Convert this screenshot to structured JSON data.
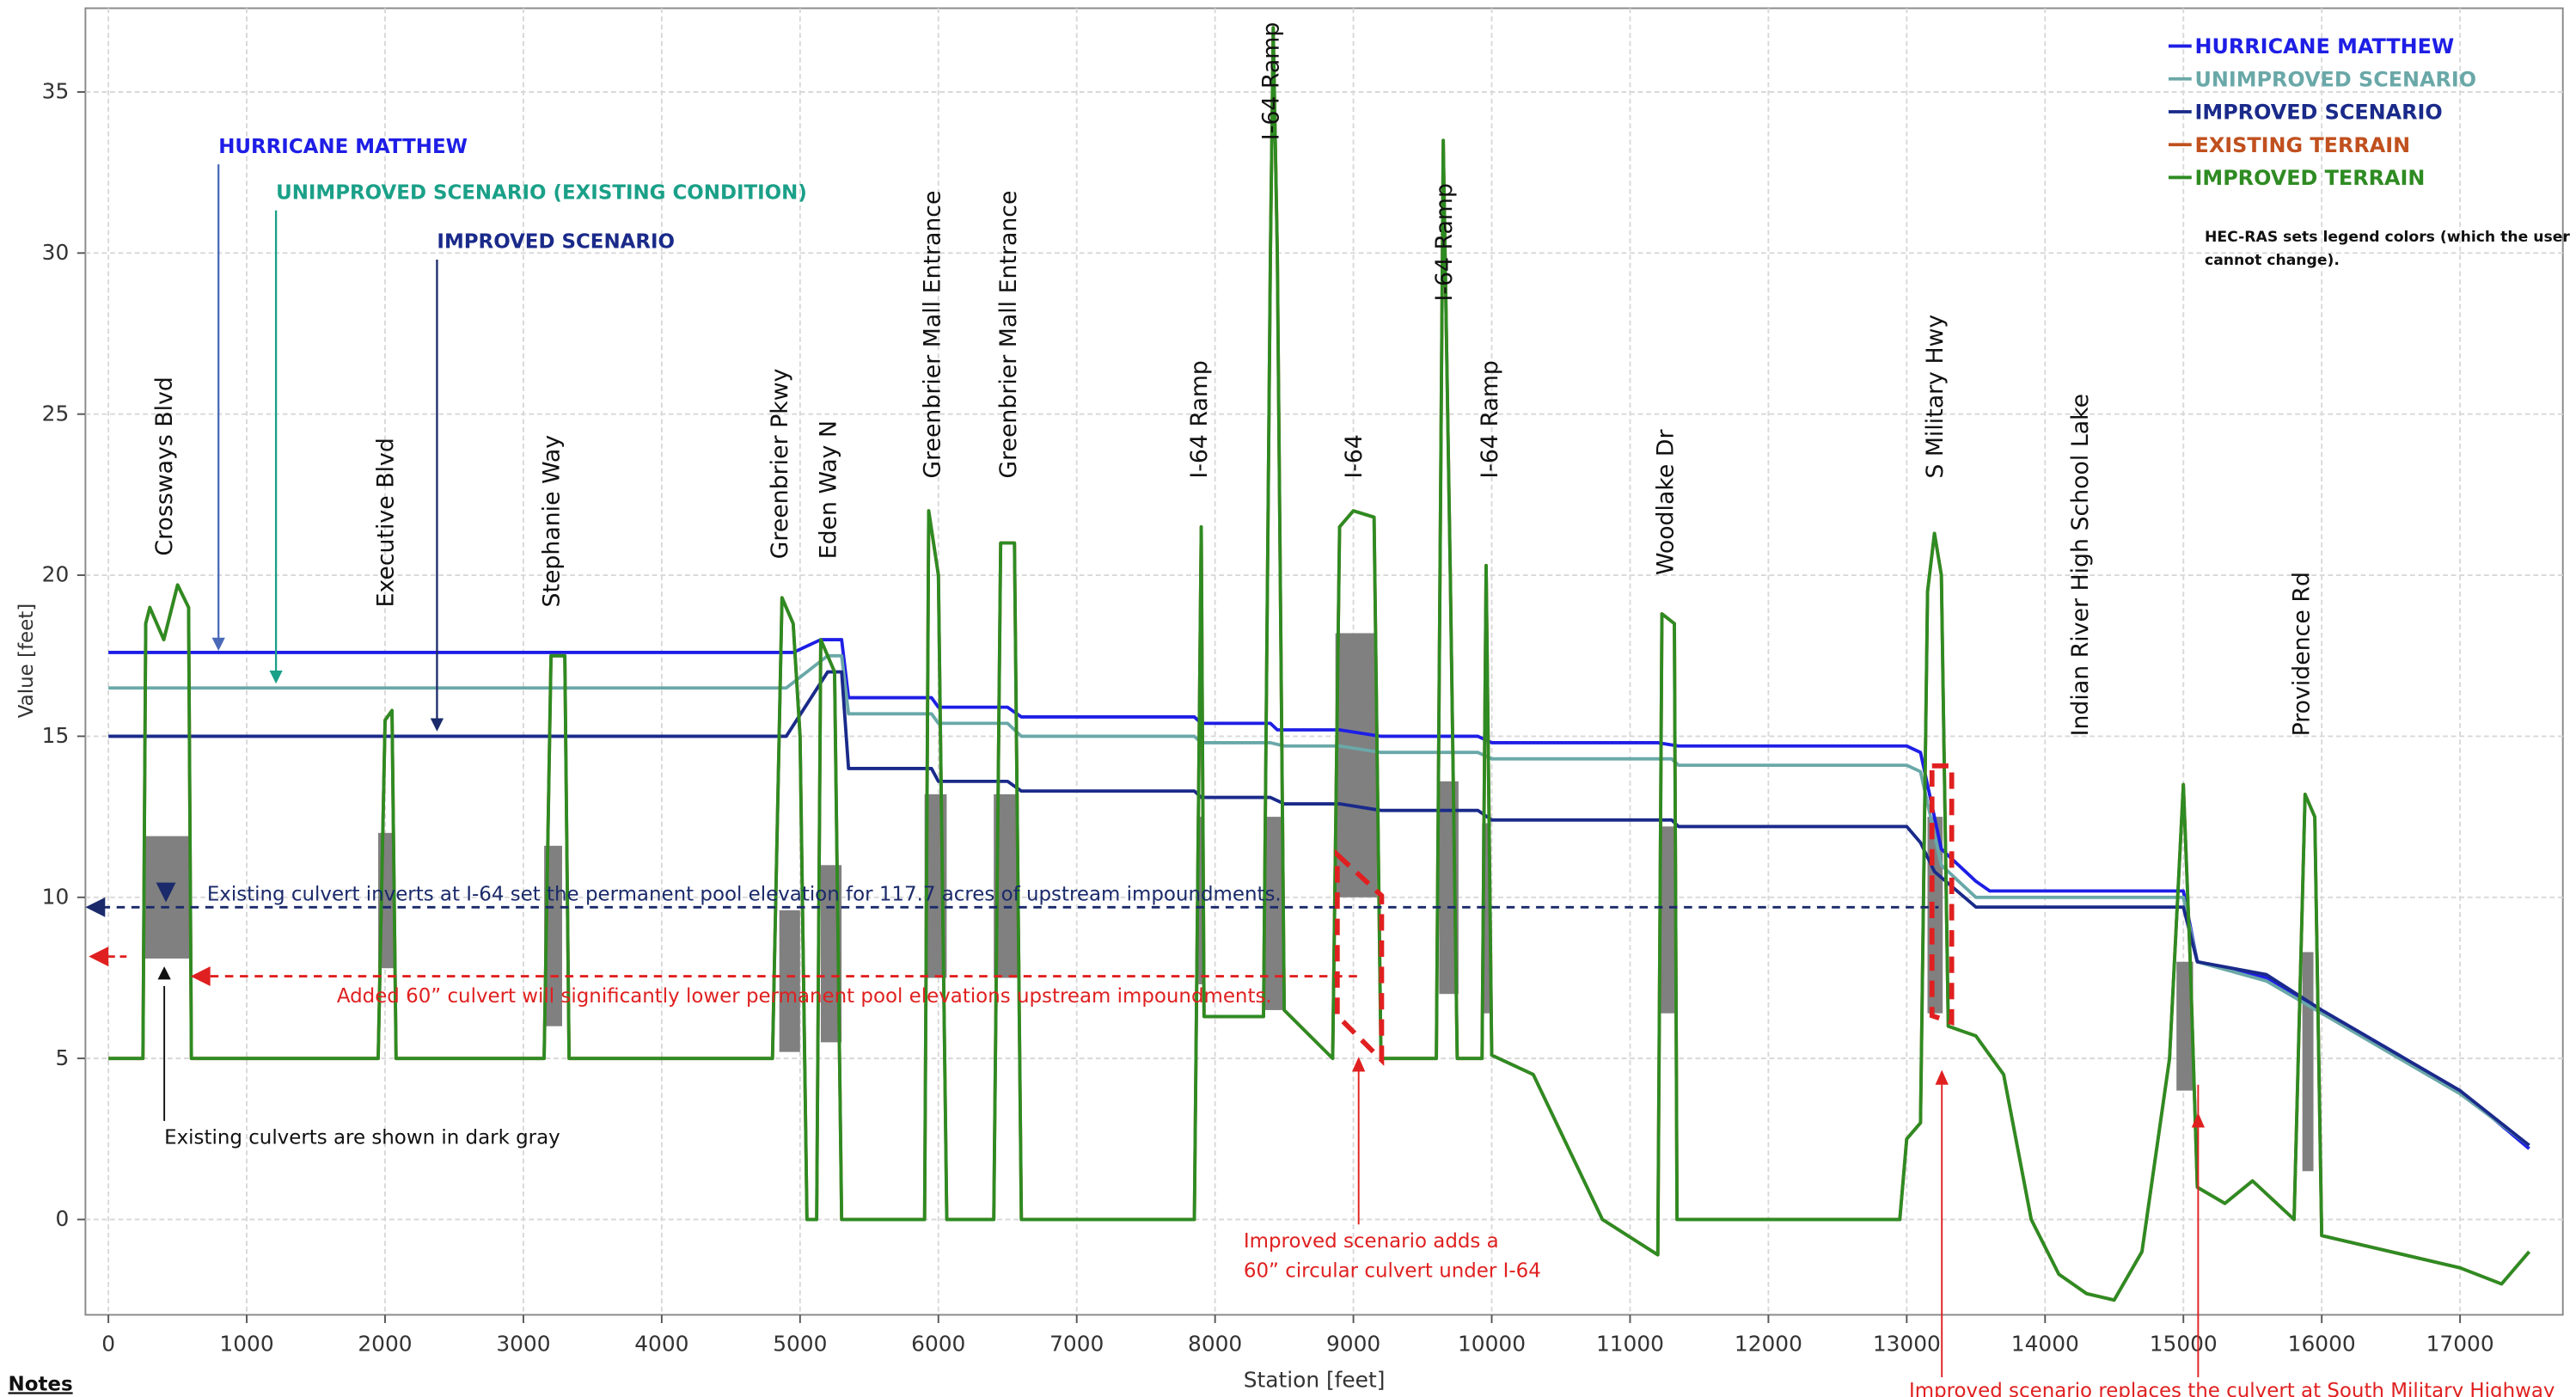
{
  "chart_data": {
    "type": "line",
    "xlabel": "Station [feet]",
    "ylabel": "Value [feet]",
    "xlim": [
      -166,
      17743
    ],
    "ylim": [
      -2.96,
      37.6
    ],
    "xticks": [
      0,
      1000,
      2000,
      3000,
      4000,
      5000,
      6000,
      7000,
      8000,
      9000,
      10000,
      11000,
      12000,
      13000,
      14000,
      15000,
      16000,
      17000
    ],
    "yticks": [
      0,
      5,
      10,
      15,
      20,
      25,
      30,
      35
    ],
    "grid": true,
    "legend": "upper right",
    "series": [
      {
        "name": "HURRICANE MATTHEW",
        "color": "#1e1ee6",
        "x": [
          0,
          4950,
          5150,
          5300,
          5350,
          5950,
          6000,
          6500,
          6600,
          7850,
          7900,
          8400,
          8450,
          8900,
          9200,
          9900,
          10000,
          11200,
          11350,
          13000,
          13100,
          13250,
          13500,
          13600,
          15000,
          15100,
          15600,
          16000,
          17000,
          17500
        ],
        "values": [
          17.6,
          17.6,
          18,
          18,
          16.2,
          16.2,
          15.9,
          15.9,
          15.6,
          15.6,
          15.4,
          15.4,
          15.2,
          15.2,
          15.0,
          15.0,
          14.8,
          14.8,
          14.7,
          14.7,
          14.5,
          11.5,
          10.5,
          10.2,
          10.2,
          8,
          7.5,
          6.5,
          4,
          2.2
        ]
      },
      {
        "name": "UNIMPROVED SCENARIO",
        "color": "#6aa8a8",
        "x": [
          0,
          4900,
          5200,
          5300,
          5350,
          5950,
          6000,
          6500,
          6600,
          7850,
          7900,
          8400,
          8500,
          8900,
          9200,
          9900,
          10000,
          11300,
          11350,
          13000,
          13100,
          13250,
          13500,
          13600,
          15000,
          15100,
          15600,
          16000,
          17000,
          17500
        ],
        "values": [
          16.5,
          16.5,
          17.5,
          17.5,
          15.7,
          15.7,
          15.4,
          15.4,
          15.0,
          15.0,
          14.8,
          14.8,
          14.7,
          14.7,
          14.5,
          14.5,
          14.3,
          14.3,
          14.1,
          14.1,
          13.9,
          11,
          10,
          10,
          10,
          8,
          7.4,
          6.4,
          3.9,
          2.3
        ]
      },
      {
        "name": "IMPROVED SCENARIO",
        "color": "#1a2a8a",
        "x": [
          0,
          4900,
          5200,
          5300,
          5350,
          5950,
          6000,
          6500,
          6600,
          7850,
          7900,
          8400,
          8500,
          8900,
          9200,
          9900,
          10000,
          11300,
          11350,
          13000,
          13100,
          13200,
          13500,
          15000,
          15100,
          15600,
          16000,
          17000,
          17500
        ],
        "values": [
          15.0,
          15.0,
          17,
          17,
          14.0,
          14.0,
          13.6,
          13.6,
          13.3,
          13.3,
          13.1,
          13.1,
          12.9,
          12.9,
          12.7,
          12.7,
          12.4,
          12.4,
          12.2,
          12.2,
          11.7,
          10.8,
          9.7,
          9.7,
          8,
          7.6,
          6.5,
          4,
          2.3
        ]
      },
      {
        "name": "EXISTING TERRAIN",
        "color": "#c0501e",
        "x": [
          0,
          250,
          270,
          300,
          400,
          500,
          580,
          600,
          1950,
          2000,
          2050,
          2080,
          3150,
          3200,
          3300,
          3330,
          4800,
          4870,
          4950,
          5000,
          5050,
          5120,
          5150,
          5250,
          5300,
          5900,
          5930,
          6000,
          6060,
          6400,
          6450,
          6550,
          6600,
          7850,
          7900,
          7920,
          8350,
          8400,
          8420,
          8450,
          8500,
          8850,
          8900,
          9000,
          9150,
          9200,
          9600,
          9650,
          9700,
          9750,
          9930,
          9960,
          10000,
          10300,
          10800,
          11200,
          11230,
          11320,
          11340,
          12950,
          13000,
          13100,
          13150,
          13200,
          13250,
          13300,
          13500,
          13700,
          13900,
          14100,
          14300,
          14500,
          14700,
          14900,
          15000,
          15050,
          15100,
          15300,
          15500,
          15800,
          15880,
          15950,
          16000,
          16500,
          17000,
          17300,
          17500
        ],
        "values": [
          5,
          5,
          18.5,
          19,
          18,
          19.7,
          19,
          5,
          5,
          15.5,
          15.8,
          5,
          5,
          17.5,
          17.5,
          5,
          5,
          19.3,
          18.5,
          15,
          0,
          0,
          18,
          17,
          0,
          0,
          22,
          20,
          0,
          0,
          21,
          21,
          0,
          0,
          21.5,
          6.3,
          6.3,
          30,
          37,
          30,
          6.5,
          5,
          21.5,
          22,
          21.8,
          5,
          5,
          33.5,
          20,
          5,
          5,
          20.3,
          5.1,
          4.5,
          0,
          -1.1,
          18.8,
          18.5,
          0,
          0,
          2.5,
          3,
          19.5,
          21.3,
          20,
          6,
          5.7,
          4.5,
          0,
          -1.7,
          -2.3,
          -2.5,
          -1,
          5,
          13.5,
          8,
          1,
          0.5,
          1.2,
          0,
          13.2,
          12.5,
          -0.5,
          -1,
          -1.5,
          -2,
          -1
        ]
      },
      {
        "name": "IMPROVED TERRAIN",
        "color": "#2e8b22",
        "x": [
          0,
          250,
          270,
          300,
          400,
          500,
          580,
          600,
          1950,
          2000,
          2050,
          2080,
          3150,
          3200,
          3300,
          3330,
          4800,
          4870,
          4950,
          5000,
          5050,
          5120,
          5150,
          5250,
          5300,
          5900,
          5930,
          6000,
          6060,
          6400,
          6450,
          6550,
          6600,
          7850,
          7900,
          7920,
          8350,
          8400,
          8420,
          8450,
          8500,
          8850,
          8900,
          9000,
          9150,
          9200,
          9600,
          9650,
          9700,
          9750,
          9930,
          9960,
          10000,
          10300,
          10800,
          11200,
          11230,
          11320,
          11340,
          12950,
          13000,
          13100,
          13150,
          13200,
          13250,
          13300,
          13500,
          13700,
          13900,
          14100,
          14300,
          14500,
          14700,
          14900,
          15000,
          15050,
          15100,
          15300,
          15500,
          15800,
          15880,
          15950,
          16000,
          16500,
          17000,
          17300,
          17500
        ],
        "values": [
          5,
          5,
          18.5,
          19,
          18,
          19.7,
          19,
          5,
          5,
          15.5,
          15.8,
          5,
          5,
          17.5,
          17.5,
          5,
          5,
          19.3,
          18.5,
          15,
          0,
          0,
          18,
          17,
          0,
          0,
          22,
          20,
          0,
          0,
          21,
          21,
          0,
          0,
          21.5,
          6.3,
          6.3,
          30,
          37,
          30,
          6.5,
          5,
          21.5,
          22,
          21.8,
          5,
          5,
          33.5,
          20,
          5,
          5,
          20.3,
          5.1,
          4.5,
          0,
          -1.1,
          18.8,
          18.5,
          0,
          0,
          2.5,
          3,
          19.5,
          21.3,
          20,
          6,
          5.7,
          4.5,
          0,
          -1.7,
          -2.3,
          -2.5,
          -1,
          5,
          13.5,
          8,
          1,
          0.5,
          1.2,
          0,
          13.2,
          12.5,
          -0.5,
          -1,
          -1.5,
          -2,
          -1
        ]
      }
    ],
    "culverts": [
      {
        "x": [
          250,
          600
        ],
        "y": [
          8.1,
          11.9
        ]
      },
      {
        "x": [
          1950,
          2070
        ],
        "y": [
          7.8,
          12
        ]
      },
      {
        "x": [
          3150,
          3280
        ],
        "y": [
          6,
          11.6
        ]
      },
      {
        "x": [
          4850,
          5000
        ],
        "y": [
          5.2,
          9.6
        ]
      },
      {
        "x": [
          5150,
          5300
        ],
        "y": [
          5.5,
          11
        ]
      },
      {
        "x": [
          5900,
          6060
        ],
        "y": [
          7.5,
          13.2
        ]
      },
      {
        "x": [
          6400,
          6580
        ],
        "y": [
          7.5,
          13.2
        ]
      },
      {
        "x": [
          7880,
          7920
        ],
        "y": [
          7.3,
          12.5
        ]
      },
      {
        "x": [
          8360,
          8500
        ],
        "y": [
          6.5,
          12.5
        ]
      },
      {
        "x": [
          8870,
          9170
        ],
        "y": [
          10,
          18.2
        ]
      },
      {
        "x": [
          9620,
          9760
        ],
        "y": [
          7,
          13.6
        ]
      },
      {
        "x": [
          9930,
          9990
        ],
        "y": [
          6.4,
          12.3
        ]
      },
      {
        "x": [
          11220,
          11320
        ],
        "y": [
          6.4,
          12.2
        ]
      },
      {
        "x": [
          13150,
          13260
        ],
        "y": [
          6.4,
          12.5
        ]
      },
      {
        "x": [
          14950,
          15070
        ],
        "y": [
          4,
          8
        ]
      },
      {
        "x": [
          15860,
          15940
        ],
        "y": [
          1.5,
          8.3
        ]
      }
    ],
    "road_labels": [
      {
        "text": "Crossways Blvd",
        "x": 400,
        "y": 20.6
      },
      {
        "text": "Executive Blvd",
        "x": 2000,
        "y": 19
      },
      {
        "text": "Stephanie Way",
        "x": 3200,
        "y": 19
      },
      {
        "text": "Greenbrier Pkwy",
        "x": 4850,
        "y": 20.5
      },
      {
        "text": "Eden Way N",
        "x": 5200,
        "y": 20.5
      },
      {
        "text": "Greenbrier Mall Entrance",
        "x": 5950,
        "y": 23
      },
      {
        "text": "Greenbrier Mall Entrance",
        "x": 6500,
        "y": 23
      },
      {
        "text": "I-64 Ramp",
        "x": 7880,
        "y": 23
      },
      {
        "text": "I-64 Ramp",
        "x": 8400,
        "y": 33.5
      },
      {
        "text": "I-64",
        "x": 9000,
        "y": 23
      },
      {
        "text": "I-64 Ramp",
        "x": 9650,
        "y": 28.5
      },
      {
        "text": "I-64 Ramp",
        "x": 9980,
        "y": 23
      },
      {
        "text": "Woodlake Dr",
        "x": 11250,
        "y": 20
      },
      {
        "text": "S Military Hwy",
        "x": 13200,
        "y": 23
      },
      {
        "text": "Indian River High School Lake",
        "x": 14250,
        "y": 15
      },
      {
        "text": "Providence Rd",
        "x": 15850,
        "y": 15
      }
    ]
  },
  "annotations": [
    "HURRICANE MATTHEW",
    "UNIMPROVED SCENARIO (EXISTING CONDITION)",
    "IMPROVED SCENARIO",
    "Existing culvert inverts at I-64 set the permanent pool elevation for 117.7 acres of upstream impoundments.",
    "Added 60” culvert will significantly lower  permanent pool elevations upstream impoundments.",
    "Existing culverts are shown in dark gray",
    "Improved scenario adds a",
    "60” circular culvert under I-64",
    "Improved scenario replaces the culvert at South Military Highway"
  ],
  "legend_note": [
    "HEC-RAS sets legend colors (which the user",
    "cannot change)."
  ],
  "notes": "Notes"
}
